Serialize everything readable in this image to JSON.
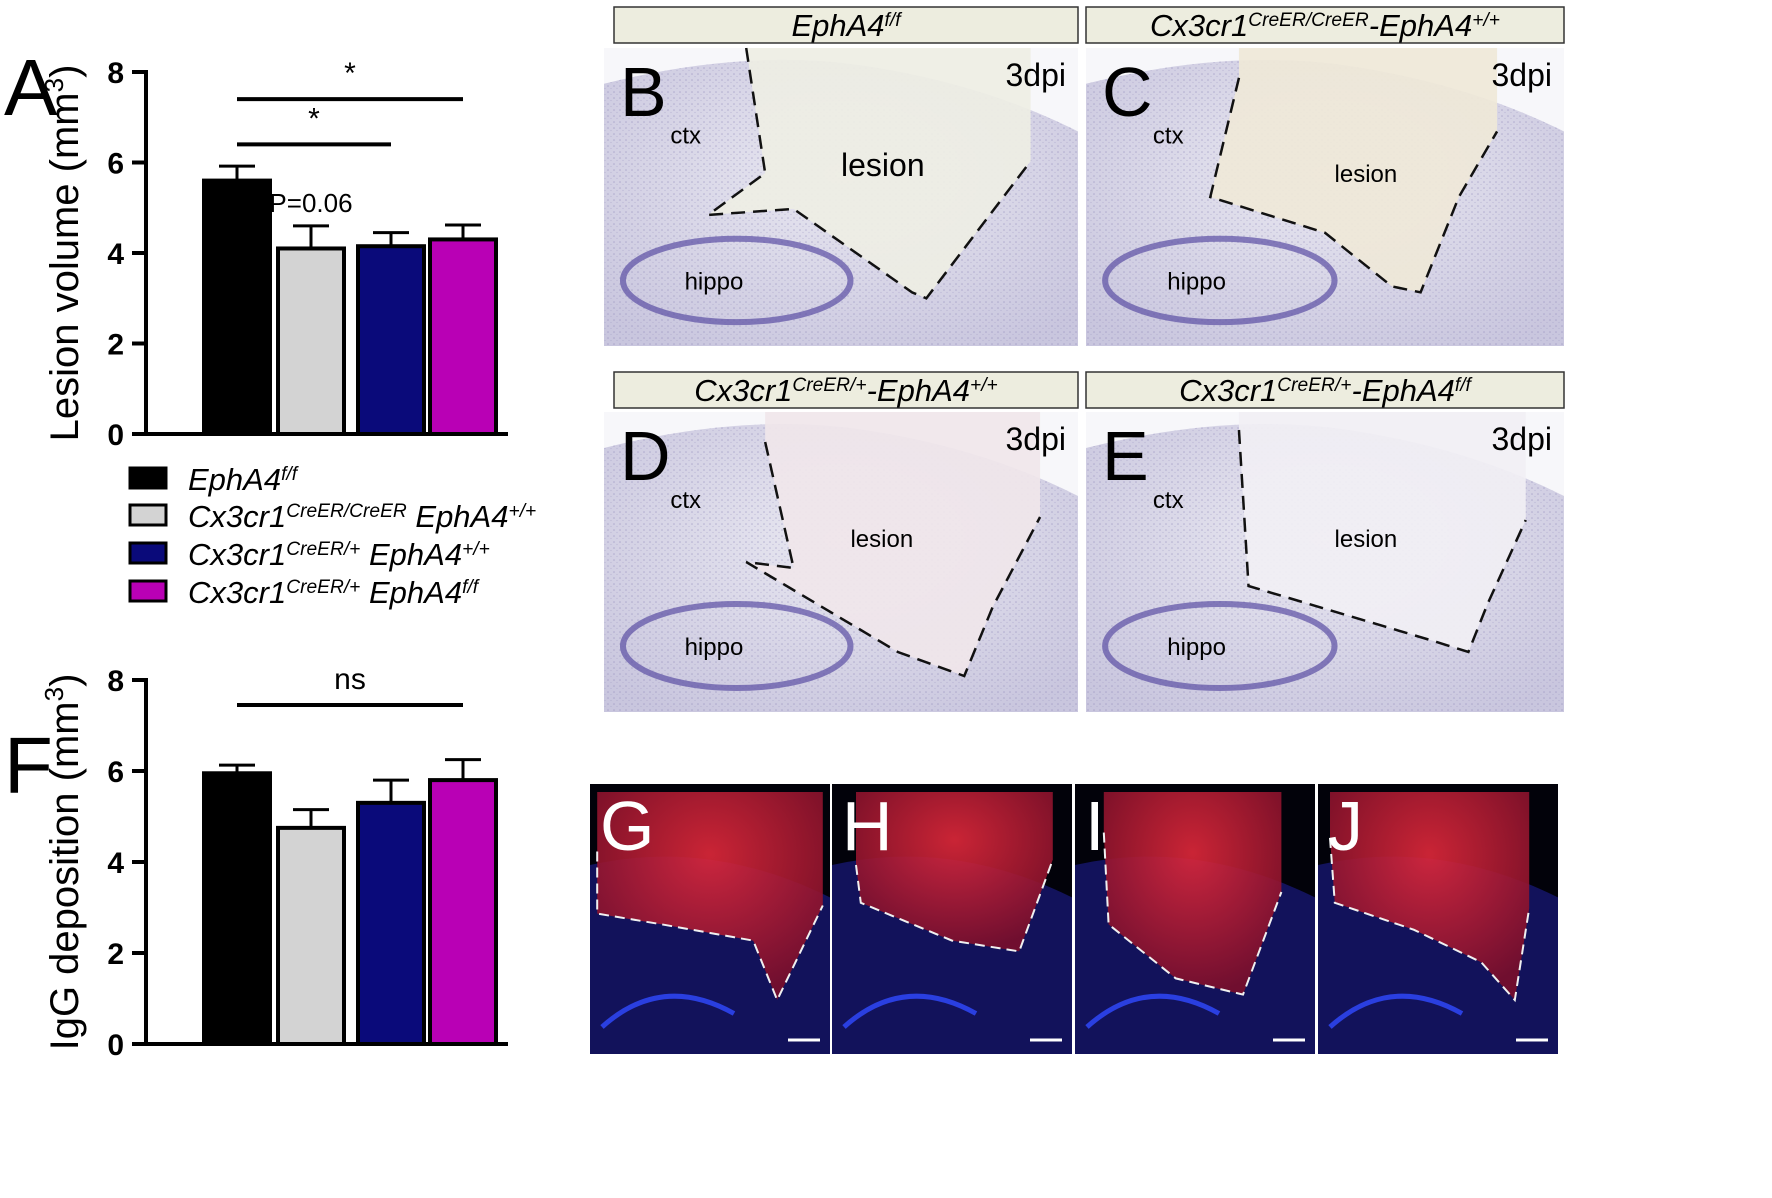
{
  "chart_data": [
    {
      "type": "bar",
      "panel": "A",
      "ylabel": "Lesion volume (mm",
      "ylabel_sup": "3",
      "ylabel_close": ")",
      "ylim": [
        0,
        8
      ],
      "yticks": [
        0,
        2,
        4,
        6,
        8
      ],
      "grid": false,
      "categories": [
        "EphA4f/f",
        "Cx3cr1CreER/CreER EphA4+/+",
        "Cx3cr1CreER/+ EphA4+/+",
        "Cx3cr1CreER/+ EphA4f/f"
      ],
      "values": [
        5.6,
        4.1,
        4.15,
        4.3
      ],
      "errors": [
        0.32,
        0.5,
        0.3,
        0.32
      ],
      "annotations": [
        {
          "text": "P=0.06",
          "bar": 1
        },
        {
          "text": "*",
          "from": 0,
          "to": 2,
          "y": 6.4
        },
        {
          "text": "*",
          "from": 0,
          "to": 3,
          "y": 7.4
        }
      ]
    },
    {
      "type": "bar",
      "panel": "F",
      "ylabel": "IgG deposition (mm",
      "ylabel_sup": "3",
      "ylabel_close": ")",
      "ylim": [
        0,
        8
      ],
      "yticks": [
        0,
        2,
        4,
        6,
        8
      ],
      "grid": false,
      "categories": [
        "EphA4f/f",
        "Cx3cr1CreER/CreER EphA4+/+",
        "Cx3cr1CreER/+ EphA4+/+",
        "Cx3cr1CreER/+ EphA4f/f"
      ],
      "values": [
        5.95,
        4.75,
        5.3,
        5.8
      ],
      "errors": [
        0.18,
        0.4,
        0.5,
        0.45
      ],
      "annotations": [
        {
          "text": "ns",
          "from": 0,
          "to": 3,
          "y": 7.45
        }
      ]
    }
  ],
  "colors": [
    "#000000",
    "#d3d3d3",
    "#0a0a7a",
    "#b900b5"
  ],
  "legend": [
    {
      "main": "EphA4",
      "sup": "f/f"
    },
    {
      "main": "Cx3cr1",
      "sup": "CreER/CreER",
      "main2": " EphA4",
      "sup2": "+/+"
    },
    {
      "main": "Cx3cr1",
      "sup": "CreER/+",
      "main2": " EphA4",
      "sup2": "+/+"
    },
    {
      "main": "Cx3cr1",
      "sup": "CreER/+",
      "main2": " EphA4",
      "sup2": "f/f"
    }
  ],
  "panel_letters": {
    "A": "A",
    "F": "F",
    "B": "B",
    "C": "C",
    "D": "D",
    "E": "E",
    "G": "G",
    "H": "H",
    "I": "I",
    "J": "J"
  },
  "histology": [
    {
      "letter": "B",
      "header_main": "EphA4",
      "header_sup": "f/f",
      "dpi": "3dpi",
      "ctx": "ctx",
      "lesion": "lesion",
      "hippo": "hippo"
    },
    {
      "letter": "C",
      "header_main": "Cx3cr1",
      "header_sup": "CreER/CreER",
      "header_main2": "-EphA4",
      "header_sup2": "+/+",
      "dpi": "3dpi",
      "ctx": "ctx",
      "lesion": "lesion",
      "hippo": "hippo"
    },
    {
      "letter": "D",
      "header_main": "Cx3cr1",
      "header_sup": "CreER/+",
      "header_main2": "-EphA4",
      "header_sup2": "+/+",
      "dpi": "3dpi",
      "ctx": "ctx",
      "lesion": "lesion",
      "hippo": "hippo"
    },
    {
      "letter": "E",
      "header_main": "Cx3cr1",
      "header_sup": "CreER/+",
      "header_main2": "-EphA4",
      "header_sup2": "f/f",
      "dpi": "3dpi",
      "ctx": "ctx",
      "lesion": "lesion",
      "hippo": "hippo"
    }
  ],
  "fluorescence": [
    "G",
    "H",
    "I",
    "J"
  ]
}
